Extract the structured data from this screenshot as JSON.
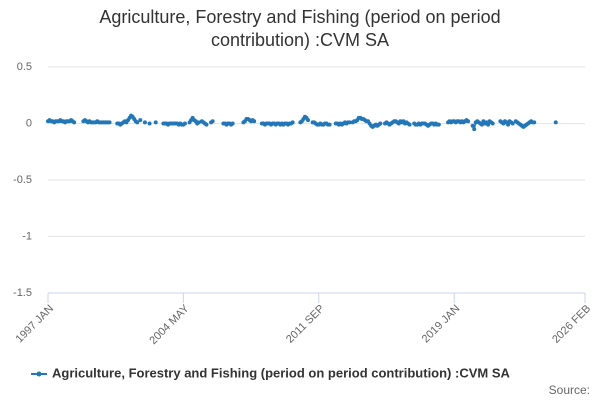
{
  "chart_data": {
    "type": "line",
    "title": "Agriculture, Forestry and Fishing (period on period contribution) :CVM SA",
    "source": "Source:",
    "categories": [
      "1997 JAN",
      null,
      null,
      null,
      null,
      null,
      null,
      null,
      null,
      null,
      null,
      null,
      null,
      null,
      null,
      null,
      null,
      null,
      null,
      null,
      null,
      null,
      null,
      null,
      null,
      null,
      null,
      null,
      null,
      null,
      null,
      null,
      null,
      null,
      null,
      null,
      null,
      null,
      null,
      null,
      null,
      null,
      null,
      null,
      null,
      null,
      null,
      null,
      null,
      null,
      null,
      null,
      null,
      null,
      null,
      null,
      null,
      null,
      null,
      null,
      null,
      null,
      null,
      null,
      null,
      null,
      null,
      null,
      null,
      null,
      null,
      null,
      null,
      null,
      null,
      null,
      null,
      null,
      null,
      null,
      null,
      null,
      null,
      null,
      null,
      null,
      null,
      null,
      "2004 MAY",
      null,
      null,
      null,
      null,
      null,
      null,
      null,
      null,
      null,
      null,
      null,
      null,
      null,
      null,
      null,
      null,
      null,
      null,
      null,
      null,
      null,
      null,
      null,
      null,
      null,
      null,
      null,
      null,
      null,
      null,
      null,
      null,
      null,
      null,
      null,
      null,
      null,
      null,
      null,
      null,
      null,
      null,
      null,
      null,
      null,
      null,
      null,
      null,
      null,
      null,
      null,
      null,
      null,
      null,
      null,
      null,
      null,
      null,
      null,
      null,
      null,
      null,
      null,
      null,
      null,
      null,
      null,
      null,
      null,
      null,
      null,
      null,
      null,
      null,
      null,
      null,
      null,
      null,
      null,
      null,
      null,
      null,
      null,
      null,
      null,
      null,
      null,
      "2011 SEP",
      null,
      null,
      null,
      null,
      null,
      null,
      null,
      null,
      null,
      null,
      null,
      null,
      null,
      null,
      null,
      null,
      null,
      null,
      null,
      null,
      null,
      null,
      null,
      null,
      null,
      null,
      null,
      null,
      null,
      null,
      null,
      null,
      null,
      null,
      null,
      null,
      null,
      null,
      null,
      null,
      null,
      null,
      null,
      null,
      null,
      null,
      null,
      null,
      null,
      null,
      null,
      null,
      null,
      null,
      null,
      null,
      null,
      null,
      null,
      null,
      null,
      null,
      null,
      null,
      null,
      null,
      null,
      null,
      null,
      null,
      null,
      null,
      null,
      null,
      null,
      null,
      null,
      null,
      null,
      null,
      null,
      null,
      null,
      null,
      null,
      null,
      null,
      "2019 JAN",
      null,
      null,
      null,
      null,
      null,
      null,
      null,
      null,
      null,
      null,
      null,
      null,
      null,
      null,
      null,
      null,
      null,
      null,
      null,
      null,
      null,
      null,
      null,
      null,
      null,
      null,
      null,
      null,
      null,
      null,
      null,
      null,
      null,
      null,
      null,
      null,
      null,
      null,
      null,
      null,
      null,
      null,
      null,
      null,
      null,
      null,
      null,
      null,
      null,
      null,
      null,
      null,
      null,
      null,
      null,
      null,
      null,
      null,
      null,
      null,
      null,
      null,
      null,
      null,
      null,
      null,
      null,
      null,
      null,
      null,
      null,
      null,
      null,
      null,
      null,
      null,
      null,
      null,
      null,
      null,
      null,
      null,
      null,
      null,
      "2026 FEB"
    ],
    "series": [
      {
        "name": "Agriculture, Forestry and Fishing (period on period contribution) :CVM SA",
        "color": "#2277b8",
        "values": [
          0.02,
          0.03,
          0.02,
          0.02,
          0.01,
          0.02,
          0.02,
          0.02,
          0.03,
          0.02,
          0.02,
          0.01,
          0.02,
          0.02,
          0.02,
          0.03,
          0.02,
          0.01,
          null,
          null,
          null,
          null,
          null,
          0.02,
          0.03,
          0.02,
          0.01,
          0.02,
          0.01,
          0.01,
          0.01,
          0.01,
          0.02,
          0.01,
          0.01,
          0.01,
          0.01,
          0.01,
          0.01,
          0.01,
          0.01,
          null,
          null,
          null,
          null,
          0,
          0,
          -0.01,
          0,
          0.01,
          0.02,
          0.01,
          0.03,
          0.05,
          0.07,
          0.06,
          0.04,
          0.02,
          0.01,
          null,
          0.03,
          null,
          null,
          0.01,
          null,
          null,
          0,
          null,
          null,
          null,
          0.01,
          null,
          null,
          null,
          null,
          0,
          0,
          0,
          -0.01,
          0,
          0,
          0,
          0,
          0,
          0,
          -0.01,
          0,
          -0.01,
          -0.01,
          0,
          null,
          null,
          0.01,
          0.03,
          0.05,
          0.03,
          0.02,
          0,
          0.01,
          null,
          0.02,
          0.01,
          0,
          -0.01,
          null,
          null,
          0.01,
          0.02,
          null,
          null,
          null,
          null,
          null,
          null,
          0,
          0,
          -0.01,
          0,
          0,
          -0.01,
          0,
          null,
          null,
          null,
          null,
          null,
          null,
          0.01,
          0.02,
          0.04,
          0.04,
          0.03,
          0.02,
          0.03,
          0.02,
          null,
          null,
          null,
          null,
          0,
          0,
          -0.01,
          0,
          0,
          0,
          -0.01,
          0,
          0,
          -0.01,
          0,
          0,
          -0.01,
          0,
          -0.01,
          0,
          0,
          -0.01,
          0,
          0,
          0.01,
          null,
          null,
          null,
          null,
          0.01,
          0.02,
          0.04,
          0.06,
          0.05,
          0.03,
          null,
          null,
          0.01,
          0.01,
          0,
          -0.01,
          -0.01,
          0,
          -0.01,
          -0.01,
          0,
          0,
          -0.01,
          -0.01,
          null,
          null,
          null,
          0,
          0,
          -0.01,
          0,
          -0.01,
          0,
          0.01,
          0,
          0.01,
          0.01,
          null,
          0.01,
          0.02,
          0.02,
          0.03,
          0.05,
          0.05,
          0.04,
          0.04,
          0.03,
          0.02,
          0.02,
          0,
          -0.02,
          -0.03,
          -0.02,
          -0.01,
          -0.02,
          -0.01,
          0,
          null,
          null,
          0,
          0.01,
          0,
          -0.01,
          0,
          0.01,
          0.02,
          0.02,
          0.01,
          0,
          0.02,
          0.01,
          0.02,
          0,
          0.01,
          0,
          -0.01,
          null,
          null,
          0,
          -0.01,
          -0.01,
          0,
          -0.01,
          0,
          0,
          0,
          -0.01,
          -0.02,
          -0.01,
          0,
          0,
          -0.01,
          0,
          -0.01,
          -0.01,
          null,
          null,
          null,
          null,
          null,
          0.01,
          0.02,
          0.01,
          0.02,
          0.02,
          0.01,
          0.02,
          0.02,
          0.01,
          0.02,
          0.01,
          0.02,
          0.03,
          0.02,
          null,
          null,
          -0.02,
          -0.05,
          0.01,
          0.02,
          0.01,
          0,
          -0.01,
          0.02,
          0,
          0.01,
          -0.01,
          0.02,
          0.01,
          0,
          null,
          null,
          null,
          null,
          0.02,
          0.01,
          0,
          0.02,
          0.01,
          -0.01,
          0.02,
          0.01,
          0,
          null,
          0.02,
          0.01,
          0,
          -0.01,
          -0.02,
          -0.03,
          -0.02,
          -0.01,
          0,
          0.01,
          0.02,
          0.01,
          0.01,
          null,
          null,
          null,
          null,
          null,
          null,
          null,
          null,
          null,
          null,
          null,
          null,
          null,
          0.01,
          null,
          null,
          null,
          null,
          null,
          null,
          null,
          null,
          null,
          null,
          null,
          null,
          null,
          null,
          null,
          null,
          null,
          null,
          null
        ]
      }
    ],
    "ylim": [
      -1.5,
      0.5
    ],
    "yticks": [
      -1.5,
      -1,
      -0.5,
      0,
      0.5
    ],
    "grid": true,
    "legend": "bottom"
  }
}
